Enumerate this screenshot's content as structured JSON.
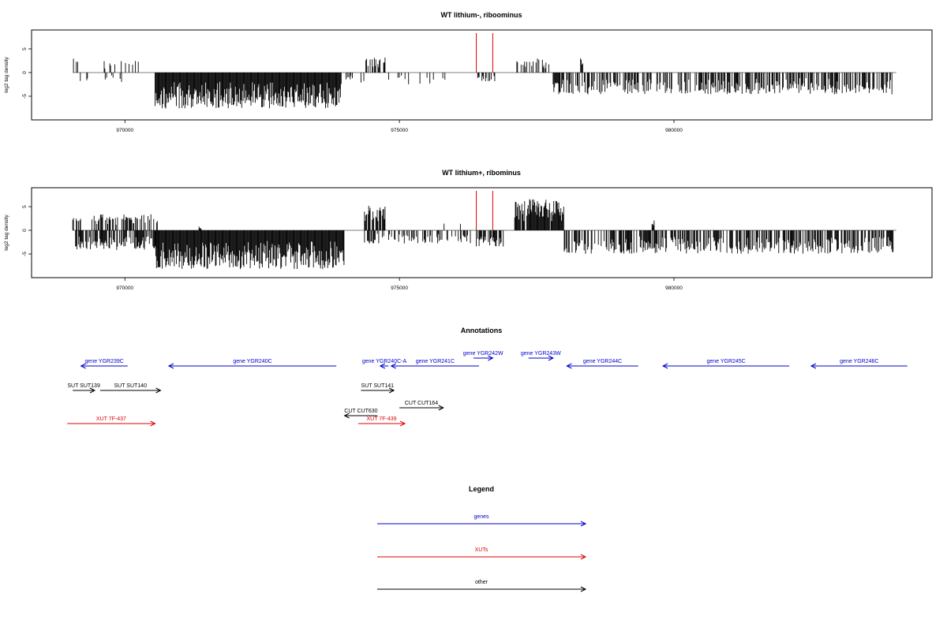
{
  "chart_data": [
    {
      "type": "bar",
      "title": "WT lithium-, riboominus",
      "ylabel": "log2 tag density",
      "xlim": [
        968300,
        984700
      ],
      "ylim": [
        -10,
        9
      ],
      "x_ticks": [
        970000,
        975000,
        980000
      ],
      "y_ticks": [
        -5,
        0,
        5
      ],
      "markers": [
        976400,
        976700
      ],
      "marker_color": "#e00000",
      "bar_color": "#000000",
      "segments": [
        {
          "x0": 969050,
          "x1": 969150,
          "sign": 1,
          "amp": 3.2,
          "density": 0.35
        },
        {
          "x0": 969150,
          "x1": 969350,
          "sign": -1,
          "amp": 2.5,
          "density": 0.25
        },
        {
          "x0": 969350,
          "x1": 970300,
          "sign": 1,
          "amp": 3.0,
          "density": 0.18
        },
        {
          "x0": 969550,
          "x1": 970100,
          "sign": -1,
          "amp": 2.0,
          "density": 0.08
        },
        {
          "x0": 970550,
          "x1": 973950,
          "sign": -1,
          "amp": 7.6,
          "density": 1.0
        },
        {
          "x0": 974000,
          "x1": 974150,
          "sign": -1,
          "amp": 1.5,
          "density": 0.3
        },
        {
          "x0": 974350,
          "x1": 974750,
          "sign": 1,
          "amp": 3.2,
          "density": 0.45
        },
        {
          "x0": 974300,
          "x1": 975700,
          "sign": -1,
          "amp": 2.5,
          "density": 0.12
        },
        {
          "x0": 975700,
          "x1": 976200,
          "sign": -1,
          "amp": 1.5,
          "density": 0.06
        },
        {
          "x0": 976400,
          "x1": 976750,
          "sign": -1,
          "amp": 2.0,
          "density": 0.4
        },
        {
          "x0": 977100,
          "x1": 977750,
          "sign": 1,
          "amp": 3.0,
          "density": 0.4
        },
        {
          "x0": 978300,
          "x1": 978350,
          "sign": 1,
          "amp": 3.4,
          "density": 1.0
        },
        {
          "x0": 977800,
          "x1": 984000,
          "sign": -1,
          "amp": 4.6,
          "density": 0.55
        }
      ]
    },
    {
      "type": "bar",
      "title": "WT lithium+, ribominus",
      "ylabel": "log2 tag density",
      "xlim": [
        968300,
        984700
      ],
      "ylim": [
        -10,
        9
      ],
      "x_ticks": [
        970000,
        975000,
        980000
      ],
      "y_ticks": [
        -5,
        0,
        5
      ],
      "markers": [
        976400,
        976700
      ],
      "marker_color": "#e00000",
      "bar_color": "#000000",
      "segments": [
        {
          "x0": 969050,
          "x1": 969200,
          "sign": 1,
          "amp": 2.6,
          "density": 0.5
        },
        {
          "x0": 969100,
          "x1": 970600,
          "sign": -1,
          "amp": 4.2,
          "density": 0.7
        },
        {
          "x0": 969400,
          "x1": 970600,
          "sign": 1,
          "amp": 3.4,
          "density": 0.55
        },
        {
          "x0": 971350,
          "x1": 971400,
          "sign": 1,
          "amp": 0.8,
          "density": 1.0
        },
        {
          "x0": 970550,
          "x1": 974000,
          "sign": -1,
          "amp": 8.2,
          "density": 1.0
        },
        {
          "x0": 974350,
          "x1": 974750,
          "sign": 1,
          "amp": 5.2,
          "density": 0.8
        },
        {
          "x0": 974300,
          "x1": 976300,
          "sign": -1,
          "amp": 2.8,
          "density": 0.4
        },
        {
          "x0": 975800,
          "x1": 976200,
          "sign": 1,
          "amp": 1.5,
          "density": 0.08
        },
        {
          "x0": 976400,
          "x1": 976900,
          "sign": -1,
          "amp": 3.5,
          "density": 0.6
        },
        {
          "x0": 977100,
          "x1": 978000,
          "sign": 1,
          "amp": 6.6,
          "density": 0.95
        },
        {
          "x0": 977950,
          "x1": 984000,
          "sign": -1,
          "amp": 5.0,
          "density": 0.6
        },
        {
          "x0": 979600,
          "x1": 979650,
          "sign": 1,
          "amp": 2.4,
          "density": 1.0
        }
      ]
    }
  ],
  "annotations": {
    "title": "Annotations",
    "xlim": [
      968300,
      984700
    ],
    "features": [
      {
        "label": "gene YGR239C",
        "color": "#0000cc",
        "row": 0,
        "start": 969200,
        "end": 970050,
        "strand": -1
      },
      {
        "label": "gene YGR240C",
        "color": "#0000cc",
        "row": 0,
        "start": 970800,
        "end": 973850,
        "strand": -1
      },
      {
        "label": "gene YGR240C-A",
        "color": "#0000cc",
        "row": 0,
        "start": 974650,
        "end": 974800,
        "strand": -1
      },
      {
        "label": "gene YGR241C",
        "color": "#0000cc",
        "row": 0,
        "start": 974850,
        "end": 976450,
        "strand": -1
      },
      {
        "label": "gene YGR242W",
        "color": "#0000cc",
        "row": -1,
        "start": 976350,
        "end": 976700,
        "strand": 1
      },
      {
        "label": "gene YGR243W",
        "color": "#0000cc",
        "row": -1,
        "start": 977350,
        "end": 977800,
        "strand": 1
      },
      {
        "label": "gene YGR244C",
        "color": "#0000cc",
        "row": 0,
        "start": 978050,
        "end": 979350,
        "strand": -1
      },
      {
        "label": "gene YGR245C",
        "color": "#0000cc",
        "row": 0,
        "start": 979800,
        "end": 982100,
        "strand": -1
      },
      {
        "label": "gene YGR246C",
        "color": "#0000cc",
        "row": 0,
        "start": 982500,
        "end": 984250,
        "strand": -1
      },
      {
        "label": "SUT SUT139",
        "color": "#000000",
        "row": 1,
        "start": 969050,
        "end": 969450,
        "strand": 1
      },
      {
        "label": "SUT SUT140",
        "color": "#000000",
        "row": 1,
        "start": 969550,
        "end": 970650,
        "strand": 1
      },
      {
        "label": "SUT SUT141",
        "color": "#000000",
        "row": 1,
        "start": 974300,
        "end": 974900,
        "strand": 1
      },
      {
        "label": "CUT CUT164",
        "color": "#000000",
        "row": 2,
        "start": 975000,
        "end": 975800,
        "strand": 1
      },
      {
        "label": "CUT CUT630",
        "color": "#000000",
        "row": 3,
        "start": 974000,
        "end": 974600,
        "strand": -1
      },
      {
        "label": "XUT 7F-437",
        "color": "#e00000",
        "row": 4,
        "start": 968950,
        "end": 970550,
        "strand": 1
      },
      {
        "label": "XUT 7F-439",
        "color": "#e00000",
        "row": 4,
        "start": 974250,
        "end": 975100,
        "strand": 1
      }
    ]
  },
  "legend": {
    "title": "Legend",
    "items": [
      {
        "label": "genes",
        "color": "#0000cc"
      },
      {
        "label": "XUTs",
        "color": "#e00000"
      },
      {
        "label": "other",
        "color": "#000000"
      }
    ]
  }
}
